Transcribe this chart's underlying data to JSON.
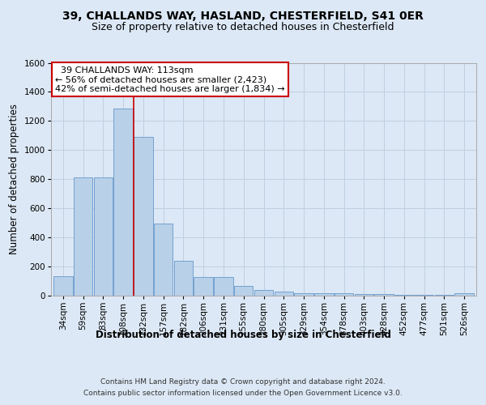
{
  "title_line1": "39, CHALLANDS WAY, HASLAND, CHESTERFIELD, S41 0ER",
  "title_line2": "Size of property relative to detached houses in Chesterfield",
  "xlabel": "Distribution of detached houses by size in Chesterfield",
  "ylabel": "Number of detached properties",
  "footer_line1": "Contains HM Land Registry data © Crown copyright and database right 2024.",
  "footer_line2": "Contains public sector information licensed under the Open Government Licence v3.0.",
  "bar_labels": [
    "34sqm",
    "59sqm",
    "83sqm",
    "108sqm",
    "132sqm",
    "157sqm",
    "182sqm",
    "206sqm",
    "231sqm",
    "255sqm",
    "280sqm",
    "305sqm",
    "329sqm",
    "354sqm",
    "378sqm",
    "403sqm",
    "428sqm",
    "452sqm",
    "477sqm",
    "501sqm",
    "526sqm"
  ],
  "bar_values": [
    135,
    815,
    815,
    1285,
    1090,
    495,
    238,
    128,
    128,
    65,
    38,
    27,
    15,
    15,
    15,
    10,
    10,
    5,
    5,
    5,
    15
  ],
  "bar_color": "#b8d0e8",
  "bar_edge_color": "#6699cc",
  "annotation_box_text": "  39 CHALLANDS WAY: 113sqm\n← 56% of detached houses are smaller (2,423)\n42% of semi-detached houses are larger (1,834) →",
  "annotation_box_color": "#ffffff",
  "annotation_box_edge_color": "#cc0000",
  "red_line_x": 3.5,
  "vline_color": "#cc0000",
  "ylim": [
    0,
    1600
  ],
  "yticks": [
    0,
    200,
    400,
    600,
    800,
    1000,
    1200,
    1400,
    1600
  ],
  "grid_color": "#c0cfe0",
  "bg_color": "#dce8f5",
  "plot_bg_color": "#dce8f5",
  "title_fontsize": 10,
  "subtitle_fontsize": 9,
  "axis_label_fontsize": 8.5,
  "tick_fontsize": 7.5,
  "annotation_fontsize": 8,
  "footer_fontsize": 6.5
}
